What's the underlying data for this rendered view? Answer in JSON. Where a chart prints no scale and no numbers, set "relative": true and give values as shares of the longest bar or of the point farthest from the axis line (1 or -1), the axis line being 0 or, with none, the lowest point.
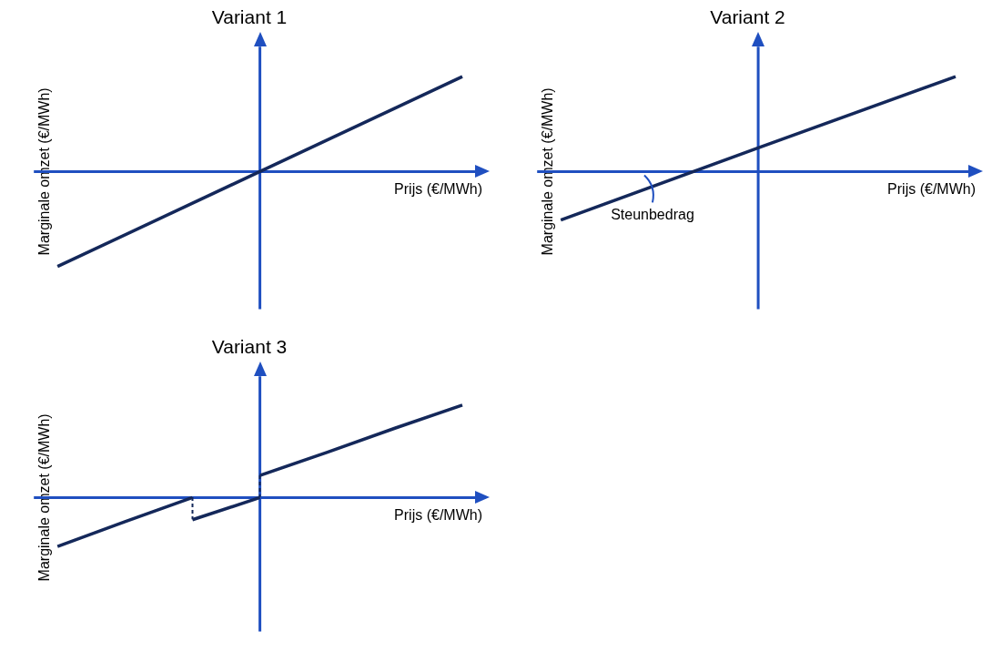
{
  "chart_data": [
    {
      "type": "line",
      "title": "Variant 1",
      "xlabel": "Prijs (€/MWh)",
      "ylabel": "Marginale omzet (€/MWh)",
      "relative": true,
      "marker": "none",
      "categories": [
        null,
        null,
        null
      ],
      "series": [
        {
          "color": "#14285a",
          "values": [
            -1,
            0,
            1
          ]
        }
      ],
      "ref_lines": [
        {
          "axis": "y",
          "value": 0,
          "color": "#1f4fc0"
        }
      ]
    },
    {
      "type": "line",
      "title": "Variant 2",
      "xlabel": "Prijs (€/MWh)",
      "ylabel": "Marginale omzet (€/MWh)",
      "relative": true,
      "marker": "none",
      "categories": [
        null,
        null,
        null
      ],
      "series": [
        {
          "color": "#14285a",
          "values": [
            -0.51,
            0.25,
            1
          ]
        }
      ],
      "ref_lines": [
        {
          "axis": "y",
          "value": 0,
          "color": "#1f4fc0"
        }
      ],
      "annotations": [
        "Steunbedrag"
      ]
    },
    {
      "type": "line",
      "title": "Variant 3",
      "xlabel": "Prijs (€/MWh)",
      "ylabel": "Marginale omzet (€/MWh)",
      "relative": true,
      "marker": "none",
      "categories": [
        null,
        null,
        null,
        null,
        null,
        null,
        null
      ],
      "series": [
        {
          "color": "#14285a",
          "values": [
            -0.53,
            -0.26,
            0,
            null,
            null,
            null,
            null
          ]
        },
        {
          "color": "#14285a",
          "values": [
            null,
            null,
            -0.24,
            0,
            null,
            null,
            null
          ]
        },
        {
          "color": "#14285a",
          "values": [
            null,
            null,
            null,
            0.24,
            0.49,
            0.75,
            1
          ]
        }
      ],
      "ref_lines": [
        {
          "axis": "y",
          "value": 0,
          "color": "#1f4fc0"
        }
      ]
    }
  ]
}
